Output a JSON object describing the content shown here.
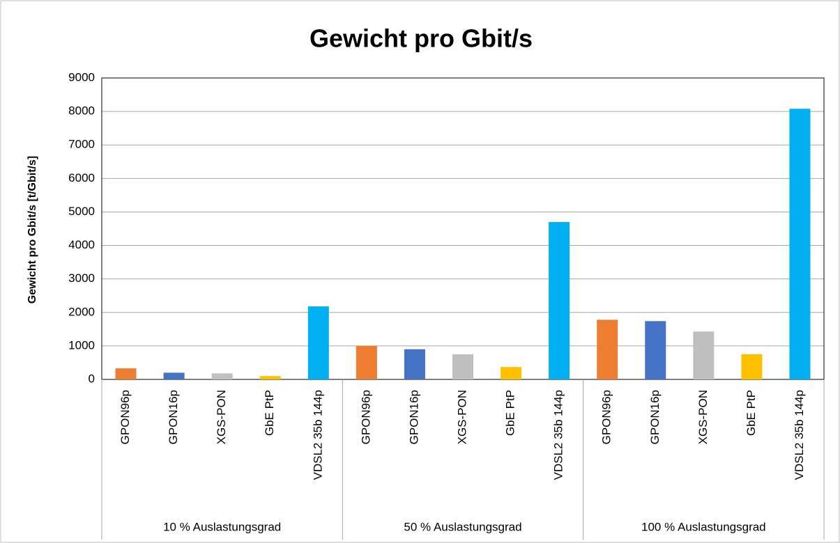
{
  "chart_data": {
    "type": "bar",
    "title": "Gewicht pro Gbit/s",
    "ylabel": "Gewicht pro Gbit/s [t/Gbit/s]",
    "groups": [
      "10 % Auslastungsgrad",
      "50 % Auslastungsgrad",
      "100 % Auslastungsgrad"
    ],
    "categories": [
      "GPON96p",
      "GPON16p",
      "XGS-PON",
      "GbE PtP",
      "VDSL2 35b 144p"
    ],
    "colors": [
      "#ed7d31",
      "#4472c4",
      "#bfbfbf",
      "#ffc000",
      "#00b0f0"
    ],
    "values": [
      [
        330,
        200,
        180,
        100,
        2180
      ],
      [
        1000,
        900,
        750,
        370,
        4700
      ],
      [
        1780,
        1740,
        1430,
        750,
        8080
      ]
    ],
    "ylim": [
      0,
      9000
    ],
    "yticks": [
      0,
      1000,
      2000,
      3000,
      4000,
      5000,
      6000,
      7000,
      8000,
      9000
    ],
    "grid": true
  }
}
